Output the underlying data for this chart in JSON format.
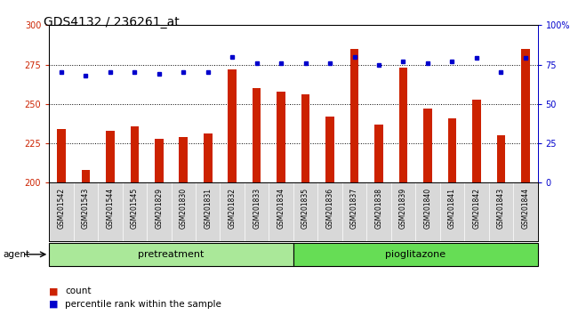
{
  "title": "GDS4132 / 236261_at",
  "samples": [
    "GSM201542",
    "GSM201543",
    "GSM201544",
    "GSM201545",
    "GSM201829",
    "GSM201830",
    "GSM201831",
    "GSM201832",
    "GSM201833",
    "GSM201834",
    "GSM201835",
    "GSM201836",
    "GSM201837",
    "GSM201838",
    "GSM201839",
    "GSM201840",
    "GSM201841",
    "GSM201842",
    "GSM201843",
    "GSM201844"
  ],
  "counts": [
    234,
    208,
    233,
    236,
    228,
    229,
    231,
    272,
    260,
    258,
    256,
    242,
    285,
    237,
    273,
    247,
    241,
    253,
    230,
    285
  ],
  "percentiles": [
    70,
    68,
    70,
    70,
    69,
    70,
    70,
    80,
    76,
    76,
    76,
    76,
    80,
    75,
    77,
    76,
    77,
    79,
    70,
    79
  ],
  "pretreatment_count": 10,
  "pioglitazone_count": 10,
  "ylim_left": [
    200,
    300
  ],
  "ylim_right": [
    0,
    100
  ],
  "yticks_left": [
    200,
    225,
    250,
    275,
    300
  ],
  "yticks_right": [
    0,
    25,
    50,
    75,
    100
  ],
  "bar_color": "#cc2200",
  "dot_color": "#0000cc",
  "pretreatment_color": "#aae899",
  "pioglitazone_color": "#66dd55",
  "agent_label": "agent",
  "pretreatment_label": "pretreatment",
  "pioglitazone_label": "pioglitazone",
  "legend_count_label": "count",
  "legend_percentile_label": "percentile rank within the sample",
  "tick_label_color_left": "#cc2200",
  "tick_label_color_right": "#0000cc",
  "dotted_line_color": "#000000",
  "title_fontsize": 10,
  "tick_fontsize": 7,
  "bar_width": 0.35
}
